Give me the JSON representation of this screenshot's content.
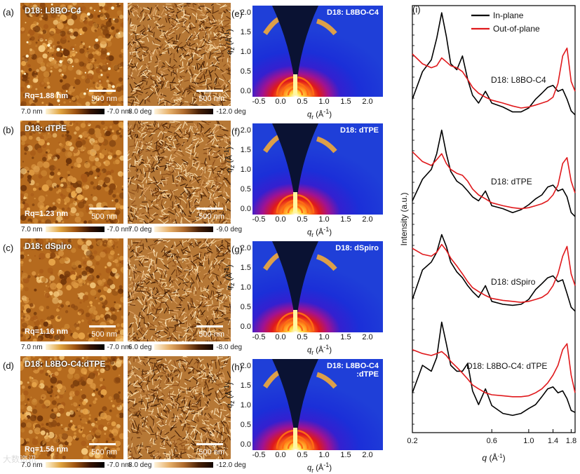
{
  "afm_panels": [
    {
      "letter": "(a)",
      "label": "D18: L8BO-C4",
      "rq": "Rq=1.88 nm",
      "scale_h": "500 nm",
      "scale_p": "500 nm",
      "h_max": "7.0 nm",
      "h_min": "-7.0 nm",
      "p_max": "8.0 deg",
      "p_min": "-12.0 deg"
    },
    {
      "letter": "(b)",
      "label": "D18: dTPE",
      "rq": "Rq=1.23 nm",
      "scale_h": "500 nm",
      "scale_p": "500 nm",
      "h_max": "7.0 nm",
      "h_min": "-7.0 nm",
      "p_max": "7.0 deg",
      "p_min": "-9.0 deg"
    },
    {
      "letter": "(c)",
      "label": "D18: dSpiro",
      "rq": "Rq=1.16 nm",
      "scale_h": "500 nm",
      "scale_p": "500 nm",
      "h_max": "7.0 nm",
      "h_min": "-7.0 nm",
      "p_max": "6.0 deg",
      "p_min": "-8.0 deg"
    },
    {
      "letter": "(d)",
      "label": "D18: L8BO-C4:dTPE",
      "rq": "Rq=1.56 nm",
      "scale_h": "500 nm",
      "scale_p": "500 nm",
      "h_max": "7.0 nm",
      "h_min": "-7.0 nm",
      "p_max": "8.0 deg",
      "p_min": "-12.0 deg"
    }
  ],
  "giwaxs_panels": [
    {
      "letter": "(e)",
      "title": "D18: L8BO-C4"
    },
    {
      "letter": "(f)",
      "title": "D18: dTPE"
    },
    {
      "letter": "(g)",
      "title": "D18: dSpiro"
    },
    {
      "letter": "(h)",
      "title": "D18: L8BO-C4\n:dTPE"
    }
  ],
  "giwaxs_axes": {
    "y_ticks": [
      "0.0",
      "0.5",
      "1.0",
      "1.5",
      "2.0"
    ],
    "x_ticks": [
      "-0.5",
      "0.0",
      "0.5",
      "1.0",
      "1.5",
      "2.0"
    ],
    "ylabel": "qz (Å-1)",
    "xlabel": "qr (Å-1)",
    "ylabel_base": "q",
    "ylabel_sub": "z",
    "ylabel_unit": " (Å",
    "ylabel_sup": "-1",
    "ylabel_close": ")",
    "xlabel_base": "q",
    "xlabel_sub": "r",
    "xlabel_unit": " (Å",
    "xlabel_sup": "-1",
    "xlabel_close": ")"
  },
  "chart_data": {
    "type": "line",
    "panel_letter": "(i)",
    "title": "",
    "xlabel": "q (Å-1)",
    "xlabel_base": "q",
    "xlabel_unit": " (Å",
    "xlabel_sup": "-1",
    "xlabel_close": ")",
    "ylabel": "Intensity (a.u.)",
    "xscale": "log",
    "xlim": [
      0.2,
      1.9
    ],
    "x_ticks": [
      "0.2",
      "0.6",
      "1.0",
      "1.4",
      "1.8"
    ],
    "x_tick_values": [
      0.2,
      0.6,
      1.0,
      1.4,
      1.8
    ],
    "legend": [
      {
        "name": "In-plane",
        "color": "#000000"
      },
      {
        "name": "Out-of-plane",
        "color": "#e0191c"
      }
    ],
    "legend_position": "top-right",
    "profile_labels": [
      "D18: L8BO-C4",
      "D18: dTPE",
      "D18: dSpiro",
      "D18: L8BO-C4: dTPE"
    ],
    "series_x": [
      0.2,
      0.23,
      0.26,
      0.28,
      0.3,
      0.32,
      0.34,
      0.37,
      0.4,
      0.43,
      0.46,
      0.5,
      0.55,
      0.6,
      0.7,
      0.8,
      0.9,
      1.0,
      1.1,
      1.2,
      1.3,
      1.4,
      1.5,
      1.6,
      1.7,
      1.8,
      1.9
    ],
    "series": [
      {
        "sample": "D18: L8BO-C4",
        "name": "In-plane",
        "values": [
          1.2,
          2.6,
          3.2,
          4.3,
          5.6,
          4.4,
          3.0,
          2.7,
          3.4,
          2.2,
          1.4,
          1.0,
          1.6,
          1.0,
          0.8,
          0.55,
          0.55,
          0.75,
          1.2,
          1.5,
          1.8,
          1.9,
          1.6,
          1.7,
          1.2,
          0.6,
          0.4
        ]
      },
      {
        "sample": "D18: L8BO-C4",
        "name": "Out-of-plane",
        "values": [
          3.5,
          3.0,
          2.8,
          2.9,
          3.3,
          3.1,
          2.9,
          2.8,
          2.6,
          2.2,
          1.8,
          1.5,
          1.3,
          1.15,
          1.0,
          0.85,
          0.75,
          0.8,
          0.9,
          1.0,
          1.1,
          1.3,
          2.0,
          3.4,
          3.8,
          2.1,
          1.6
        ]
      },
      {
        "sample": "D18: dTPE",
        "name": "In-plane",
        "values": [
          1.2,
          2.3,
          2.8,
          3.6,
          4.8,
          3.6,
          2.7,
          2.2,
          2.0,
          1.7,
          1.4,
          1.2,
          1.7,
          0.95,
          0.8,
          0.6,
          0.75,
          1.0,
          1.3,
          1.5,
          1.9,
          2.0,
          1.7,
          1.8,
          1.4,
          0.6,
          0.4
        ]
      },
      {
        "sample": "D18: dTPE",
        "name": "Out-of-plane",
        "values": [
          3.7,
          3.2,
          3.0,
          3.3,
          3.6,
          3.1,
          2.8,
          2.6,
          2.5,
          2.2,
          1.8,
          1.5,
          1.3,
          1.1,
          0.95,
          0.85,
          0.8,
          0.85,
          0.95,
          1.05,
          1.2,
          1.5,
          2.0,
          3.1,
          3.4,
          2.2,
          1.6
        ]
      },
      {
        "sample": "D18: dSpiro",
        "name": "In-plane",
        "values": [
          1.0,
          2.5,
          2.9,
          3.4,
          4.3,
          3.7,
          2.9,
          2.4,
          2.1,
          1.7,
          1.4,
          1.1,
          1.7,
          0.9,
          0.75,
          0.7,
          0.75,
          1.0,
          1.5,
          1.8,
          2.1,
          2.2,
          1.9,
          2.0,
          1.3,
          0.6,
          0.4
        ]
      },
      {
        "sample": "D18: dSpiro",
        "name": "Out-of-plane",
        "values": [
          3.6,
          3.3,
          3.2,
          3.4,
          3.8,
          3.5,
          3.1,
          2.7,
          2.3,
          1.9,
          1.6,
          1.4,
          1.2,
          1.05,
          0.95,
          0.9,
          0.85,
          0.9,
          1.0,
          1.1,
          1.3,
          1.7,
          2.3,
          3.2,
          3.7,
          2.3,
          1.7
        ]
      },
      {
        "sample": "D18: L8BO-C4: dTPE",
        "name": "In-plane",
        "values": [
          1.6,
          3.0,
          2.7,
          3.4,
          5.2,
          4.1,
          3.0,
          2.7,
          2.7,
          3.1,
          1.7,
          1.0,
          1.8,
          0.95,
          0.55,
          0.45,
          0.55,
          0.8,
          1.0,
          1.4,
          1.8,
          1.9,
          1.6,
          1.7,
          1.3,
          0.7,
          0.6
        ]
      },
      {
        "sample": "D18: L8BO-C4: dTPE",
        "name": "Out-of-plane",
        "values": [
          3.8,
          3.6,
          3.5,
          3.6,
          3.7,
          3.5,
          3.2,
          2.9,
          2.6,
          2.3,
          2.0,
          1.8,
          1.6,
          1.5,
          1.45,
          1.4,
          1.4,
          1.45,
          1.6,
          1.8,
          2.1,
          2.5,
          3.0,
          3.8,
          4.1,
          2.5,
          1.6
        ]
      }
    ]
  },
  "watermark": "大数资讯"
}
